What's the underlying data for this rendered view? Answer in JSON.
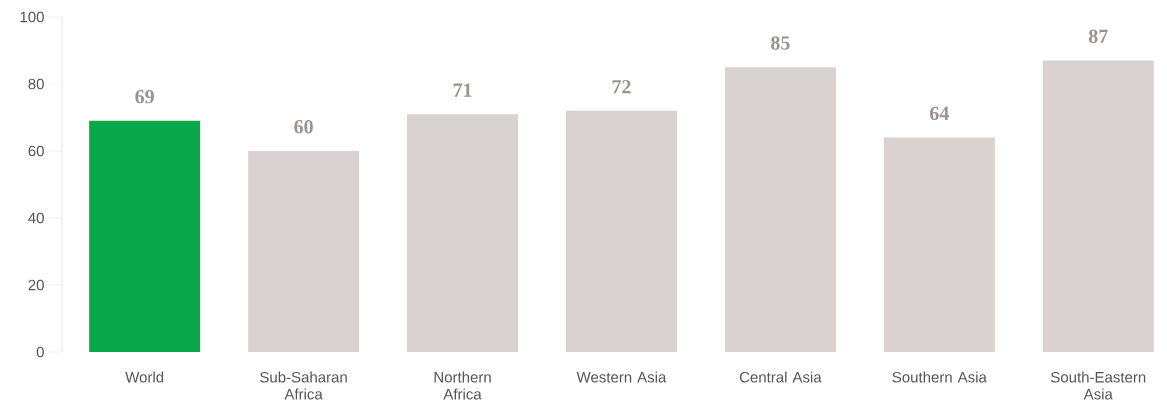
{
  "chart_data": {
    "type": "bar",
    "categories": [
      "World",
      "Sub-Saharan Africa",
      "Northern Africa",
      "Western Asia",
      "Central Asia",
      "Southern Asia",
      "South-Eastern Asia"
    ],
    "values": [
      69,
      60,
      71,
      72,
      85,
      64,
      87
    ],
    "colors": [
      "#0aa84a",
      "#d8d3d0",
      "#d8d3d0",
      "#d8d3d0",
      "#d8d3d0",
      "#d8d3d0",
      "#d8d3d0"
    ],
    "ylim": [
      0,
      100
    ],
    "yticks": [
      0,
      20,
      40,
      60,
      80,
      100
    ],
    "data_labels": true,
    "grid": false
  }
}
